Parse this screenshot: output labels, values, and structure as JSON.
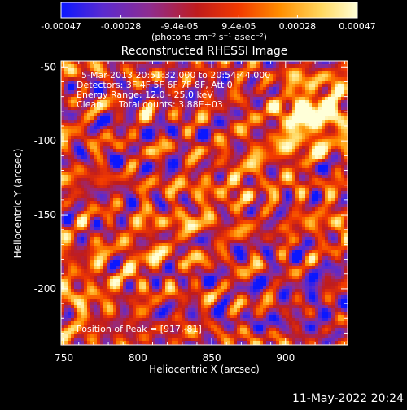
{
  "chart_data": {
    "type": "heatmap",
    "title": "Reconstructed RHESSI Image",
    "xlabel": "Heliocentric X (arcsec)",
    "ylabel": "Heliocentric Y (arcsec)",
    "xlim": [
      748,
      942
    ],
    "ylim": [
      -238,
      -46
    ],
    "x_ticks": [
      750,
      800,
      850,
      900
    ],
    "y_ticks": [
      -50,
      -100,
      -150,
      -200
    ],
    "colorbar": {
      "ticks": [
        "-0.00047",
        "-0.00028",
        "-9.4e-05",
        "9.4e-05",
        "0.00028",
        "0.00047"
      ],
      "tick_values": [
        -0.00047,
        -0.00028,
        -9.4e-05,
        9.4e-05,
        0.00028,
        0.00047
      ],
      "range": [
        -0.00047,
        0.00047
      ],
      "label": "(photons cm⁻² s⁻¹ asec⁻²)",
      "colors": [
        "#0a17ff",
        "#5a2ad0",
        "#8f2c8f",
        "#c01c1c",
        "#f23a00",
        "#ff8f00",
        "#ffd860",
        "#ffffd8"
      ]
    },
    "annotations": [
      "5-Mar-2013 20:51:32.000 to 20:54:44.000",
      "Detectors: 3F 4F 5F 6F 7F 8F, Att 0",
      "Energy Range: 12.0 - 25.0 keV",
      "Clean",
      "Total counts: 3.88E+03",
      "Position of Peak = [917,-81]"
    ],
    "peak": {
      "x": 917,
      "y": -81
    },
    "grid": false
  },
  "footer": {
    "timestamp": "11-May-2022 20:24"
  }
}
